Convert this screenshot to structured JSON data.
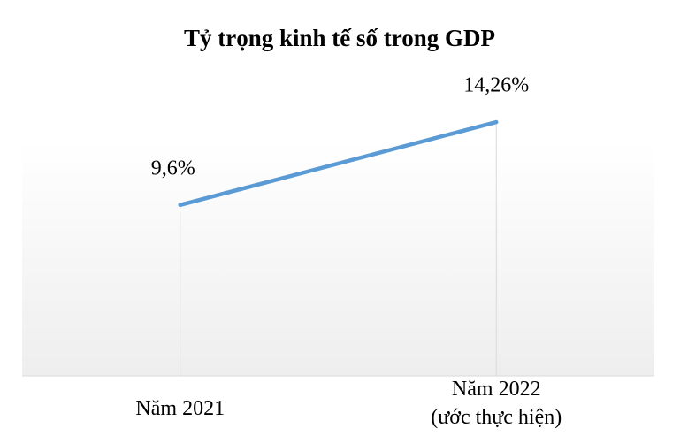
{
  "chart_data": {
    "type": "line",
    "title": "Tỷ trọng kinh tế số trong GDP",
    "categories": [
      "Năm 2021",
      "Năm 2022\n(ước thực hiện)"
    ],
    "values": [
      9.6,
      14.26
    ],
    "value_labels": [
      "9,6%",
      "14,26%"
    ],
    "color": "#5b9bd5",
    "ylim": [
      0,
      16
    ],
    "drop_lines": true
  }
}
